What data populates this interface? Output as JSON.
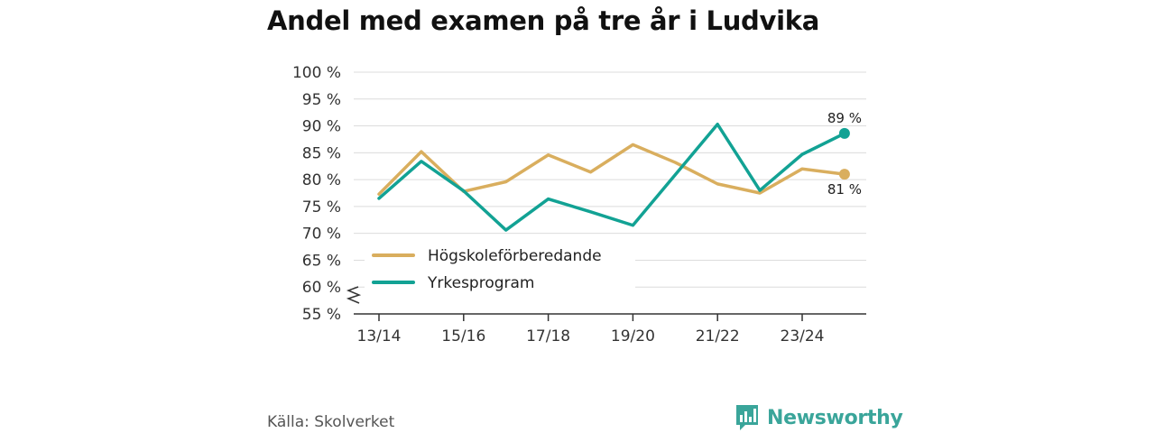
{
  "chart_data": {
    "type": "line",
    "title": "Andel med examen på tre år i Ludvika",
    "x": [
      "13/14",
      "14/15",
      "15/16",
      "16/17",
      "17/18",
      "18/19",
      "19/20",
      "20/21",
      "21/22",
      "22/23",
      "23/24",
      "24/25"
    ],
    "x_tick_labels": [
      "13/14",
      "15/16",
      "17/18",
      "19/20",
      "21/22",
      "23/24"
    ],
    "y_tick_labels": [
      "55 %",
      "60 %",
      "65 %",
      "70 %",
      "75 %",
      "80 %",
      "85 %",
      "90 %",
      "95 %",
      "100 %"
    ],
    "ylim": [
      55,
      100
    ],
    "y_axis_break": true,
    "grid": true,
    "legend_position": "bottom-left",
    "series": [
      {
        "name": "Högskoleförberedande",
        "color": "#d9ae5e",
        "values": [
          77.3,
          85.2,
          77.8,
          79.6,
          84.6,
          81.4,
          86.5,
          83.2,
          79.2,
          77.5,
          82.0,
          81.0
        ],
        "end_label": "81 %"
      },
      {
        "name": "Yrkesprogram",
        "color": "#12a294",
        "values": [
          76.5,
          83.4,
          77.9,
          70.6,
          76.4,
          74.0,
          71.5,
          80.9,
          90.3,
          78.0,
          84.7,
          88.6
        ],
        "end_label": "89 %"
      }
    ]
  },
  "footer": {
    "source": "Källa: Skolverket",
    "logo_text": "Newsworthy",
    "logo_icon": "bar-chart-speech-icon"
  }
}
